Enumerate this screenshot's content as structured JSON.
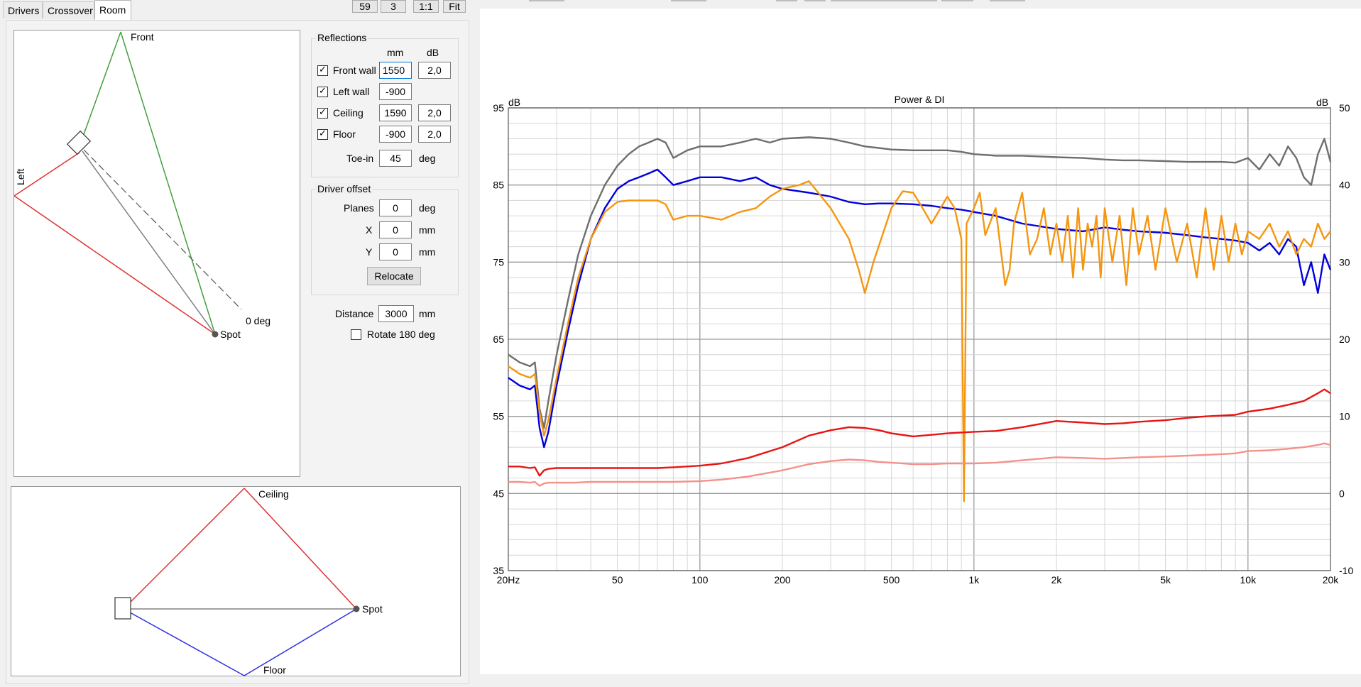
{
  "tabs": [
    {
      "label": "Drivers"
    },
    {
      "label": "Crossover"
    },
    {
      "label": "Room",
      "active": true
    }
  ],
  "toolbar": {
    "zoom_value": "59",
    "step_value": "3",
    "ratio_label": "1:1",
    "fit_label": "Fit"
  },
  "top_view": {
    "front_label": "Front",
    "left_label": "Left",
    "zero_deg_label": "0 deg",
    "spot_label": "Spot"
  },
  "side_view": {
    "ceiling_label": "Ceiling",
    "floor_label": "Floor",
    "spot_label": "Spot"
  },
  "reflections": {
    "title": "Reflections",
    "col_mm": "mm",
    "col_db": "dB",
    "rows": [
      {
        "label": "Front wall",
        "checked": true,
        "mm": "1550",
        "db": "2,0"
      },
      {
        "label": "Left wall",
        "checked": true,
        "mm": "-900",
        "db": null
      },
      {
        "label": "Ceiling",
        "checked": true,
        "mm": "1590",
        "db": "2,0"
      },
      {
        "label": "Floor",
        "checked": true,
        "mm": "-900",
        "db": "2,0"
      }
    ],
    "toe_in": {
      "label": "Toe-in",
      "value": "45",
      "unit": "deg"
    }
  },
  "driver_offset": {
    "title": "Driver offset",
    "planes": {
      "label": "Planes",
      "value": "0",
      "unit": "deg"
    },
    "x": {
      "label": "X",
      "value": "0",
      "unit": "mm"
    },
    "y": {
      "label": "Y",
      "value": "0",
      "unit": "mm"
    },
    "relocate_label": "Relocate"
  },
  "distance": {
    "label": "Distance",
    "value": "3000",
    "unit": "mm"
  },
  "rotate": {
    "label": "Rotate 180 deg",
    "checked": false
  },
  "chart_data": {
    "type": "line",
    "title": "Power & DI",
    "ylabel_left": "dB",
    "ylabel_right": "dB",
    "x_scale": "log",
    "xlim": [
      20,
      20000
    ],
    "ylim_left": [
      35,
      95
    ],
    "ylim_right": [
      -10,
      50
    ],
    "x_tick_labels": [
      "20Hz",
      "50",
      "100",
      "200",
      "500",
      "1k",
      "2k",
      "5k",
      "10k",
      "20k"
    ],
    "x_tick_values": [
      20,
      50,
      100,
      200,
      500,
      1000,
      2000,
      5000,
      10000,
      20000
    ],
    "y_left_ticks": [
      "95",
      "85",
      "75",
      "65",
      "55",
      "45",
      "35"
    ],
    "y_right_ticks": [
      "50",
      "40",
      "30",
      "20",
      "10",
      "0",
      "-10"
    ],
    "grid": true,
    "series": [
      {
        "color": "#6e6e6e",
        "axis": "left",
        "x": [
          20,
          22,
          24,
          25,
          26,
          27,
          28,
          30,
          33,
          36,
          40,
          45,
          50,
          55,
          60,
          65,
          70,
          75,
          80,
          90,
          100,
          120,
          140,
          160,
          180,
          200,
          250,
          300,
          350,
          400,
          450,
          500,
          600,
          700,
          800,
          900,
          1000,
          1200,
          1500,
          2000,
          2500,
          3000,
          3500,
          4000,
          5000,
          6000,
          7000,
          8000,
          9000,
          10000,
          11000,
          12000,
          13000,
          14000,
          15000,
          16000,
          17000,
          18000,
          19000,
          20000
        ],
        "y": [
          63,
          62,
          61.5,
          62,
          56,
          53.5,
          57,
          63,
          70,
          76,
          81,
          85,
          87.5,
          89,
          90,
          90.5,
          91,
          90.5,
          88.5,
          89.5,
          90,
          90,
          90.5,
          91,
          90.5,
          91,
          91.2,
          91,
          90.5,
          90,
          89.8,
          89.6,
          89.5,
          89.5,
          89.5,
          89.3,
          89,
          88.8,
          88.8,
          88.6,
          88.5,
          88.3,
          88.2,
          88.2,
          88.1,
          88,
          88,
          88,
          87.9,
          88.5,
          87,
          89,
          87.5,
          90,
          88.5,
          86,
          85,
          89,
          91,
          88
        ]
      },
      {
        "color": "#0000dc",
        "axis": "left",
        "x": [
          20,
          22,
          24,
          25,
          26,
          27,
          28,
          30,
          33,
          36,
          40,
          45,
          50,
          55,
          60,
          65,
          70,
          75,
          80,
          90,
          100,
          120,
          140,
          160,
          180,
          200,
          250,
          300,
          350,
          400,
          450,
          500,
          600,
          700,
          800,
          900,
          1000,
          1200,
          1500,
          2000,
          2500,
          3000,
          3500,
          4000,
          5000,
          6000,
          7000,
          8000,
          9000,
          10000,
          11000,
          12000,
          13000,
          14000,
          15000,
          16000,
          17000,
          18000,
          19000,
          20000
        ],
        "y": [
          60,
          59,
          58.5,
          59,
          53.5,
          51,
          53,
          59,
          66,
          72,
          78,
          82,
          84.5,
          85.5,
          86,
          86.5,
          87,
          86,
          85,
          85.5,
          86,
          86,
          85.5,
          86,
          85,
          84.5,
          84,
          83.5,
          82.8,
          82.5,
          82.6,
          82.6,
          82.5,
          82.3,
          82,
          81.8,
          81.5,
          81,
          80,
          79.3,
          79,
          79.5,
          79.2,
          79,
          78.8,
          78.5,
          78.2,
          78,
          77.8,
          77.5,
          76.5,
          77.5,
          76,
          78,
          77,
          72,
          75,
          71,
          76,
          74
        ]
      },
      {
        "color": "#f5960f",
        "axis": "left",
        "x": [
          20,
          22,
          24,
          25,
          26,
          27,
          28,
          30,
          33,
          36,
          40,
          45,
          50,
          55,
          60,
          70,
          75,
          80,
          90,
          100,
          120,
          140,
          160,
          180,
          200,
          230,
          250,
          300,
          350,
          380,
          400,
          430,
          500,
          550,
          600,
          650,
          700,
          800,
          850,
          900,
          920,
          940,
          1000,
          1050,
          1100,
          1200,
          1300,
          1350,
          1400,
          1500,
          1600,
          1700,
          1800,
          1900,
          2000,
          2100,
          2200,
          2300,
          2400,
          2500,
          2600,
          2700,
          2800,
          2900,
          3000,
          3200,
          3400,
          3600,
          3800,
          4000,
          4300,
          4600,
          5000,
          5500,
          6000,
          6500,
          7000,
          7500,
          8000,
          8500,
          9000,
          9500,
          10000,
          11000,
          12000,
          13000,
          14000,
          15000,
          16000,
          17000,
          18000,
          19000,
          20000
        ],
        "y": [
          61.5,
          60.5,
          60,
          60.5,
          55.5,
          52.5,
          54.5,
          60,
          67,
          73,
          78,
          81.5,
          82.8,
          83,
          83,
          83,
          82.5,
          80.5,
          81,
          81,
          80.5,
          81.5,
          82,
          83.5,
          84.5,
          85,
          85.5,
          82,
          78,
          74,
          71,
          75,
          82,
          84.2,
          84,
          82,
          80,
          83.5,
          82,
          78,
          44,
          80,
          82,
          84,
          78.5,
          82,
          72,
          74,
          80,
          84,
          76,
          78,
          82,
          76,
          80,
          75,
          81,
          73,
          82,
          74,
          80,
          77,
          81,
          73,
          82,
          75,
          81,
          72,
          82,
          76,
          81,
          74,
          82,
          75,
          80,
          73,
          82,
          74,
          81,
          75,
          80,
          76,
          79,
          78,
          80,
          77,
          79,
          76,
          78,
          77,
          80,
          78,
          79
        ]
      },
      {
        "color": "#e81414",
        "axis": "right",
        "x": [
          20,
          22,
          24,
          25,
          26,
          27,
          28,
          30,
          35,
          40,
          50,
          60,
          70,
          80,
          100,
          120,
          150,
          200,
          250,
          300,
          350,
          400,
          450,
          500,
          600,
          700,
          800,
          1000,
          1200,
          1500,
          2000,
          2500,
          3000,
          3500,
          4000,
          5000,
          6000,
          7000,
          8000,
          9000,
          10000,
          12000,
          14000,
          16000,
          18000,
          19000,
          20000
        ],
        "y": [
          3.5,
          3.5,
          3.3,
          3.4,
          2.3,
          3,
          3.2,
          3.3,
          3.3,
          3.3,
          3.3,
          3.3,
          3.3,
          3.4,
          3.6,
          3.9,
          4.6,
          6,
          7.5,
          8.2,
          8.6,
          8.5,
          8.2,
          7.8,
          7.4,
          7.6,
          7.8,
          8,
          8.1,
          8.6,
          9.4,
          9.2,
          9,
          9.1,
          9.3,
          9.5,
          9.8,
          10,
          10.1,
          10.2,
          10.6,
          11,
          11.5,
          12,
          13,
          13.5,
          13
        ]
      },
      {
        "color": "#f4918a",
        "axis": "right",
        "x": [
          20,
          22,
          24,
          25,
          26,
          27,
          28,
          30,
          35,
          40,
          50,
          60,
          70,
          80,
          100,
          120,
          150,
          200,
          250,
          300,
          350,
          400,
          450,
          500,
          600,
          700,
          800,
          1000,
          1200,
          1500,
          2000,
          2500,
          3000,
          3500,
          4000,
          5000,
          6000,
          7000,
          8000,
          9000,
          10000,
          12000,
          14000,
          16000,
          18000,
          19000,
          20000
        ],
        "y": [
          1.5,
          1.5,
          1.4,
          1.5,
          1,
          1.3,
          1.4,
          1.4,
          1.4,
          1.5,
          1.5,
          1.5,
          1.5,
          1.5,
          1.6,
          1.8,
          2.2,
          3,
          3.8,
          4.2,
          4.4,
          4.3,
          4.1,
          4,
          3.8,
          3.8,
          3.9,
          3.9,
          4,
          4.3,
          4.7,
          4.6,
          4.5,
          4.6,
          4.7,
          4.8,
          4.9,
          5,
          5.1,
          5.2,
          5.5,
          5.6,
          5.8,
          6,
          6.3,
          6.5,
          6.3
        ]
      }
    ]
  }
}
